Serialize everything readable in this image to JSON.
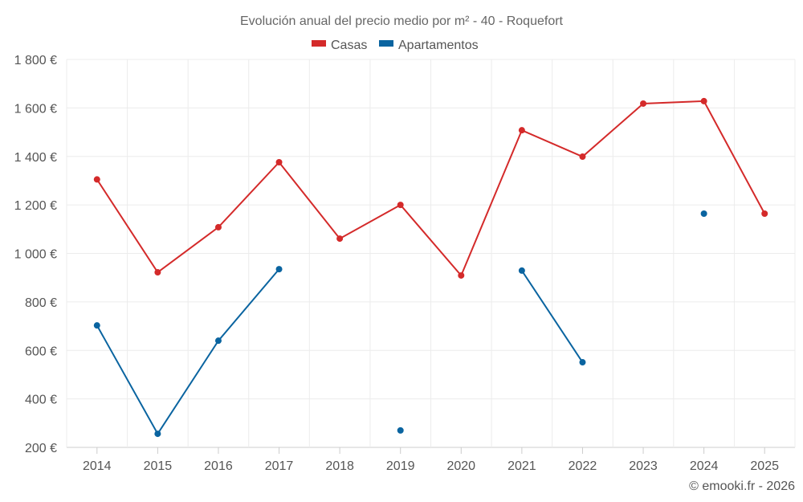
{
  "chart_data": {
    "type": "line",
    "title": "Evolución anual del precio medio por m² - 40 - Roquefort",
    "xlabel": "",
    "ylabel": "",
    "categories": [
      "2014",
      "2015",
      "2016",
      "2017",
      "2018",
      "2019",
      "2020",
      "2021",
      "2022",
      "2023",
      "2024",
      "2025"
    ],
    "ylim": [
      200,
      1800
    ],
    "yticks": [
      200,
      400,
      600,
      800,
      1000,
      1200,
      1400,
      1600,
      1800
    ],
    "ytick_labels": [
      "200 €",
      "400 €",
      "600 €",
      "800 €",
      "1 000 €",
      "1 200 €",
      "1 400 €",
      "1 600 €",
      "1 800 €"
    ],
    "grid": true,
    "legend_position": "top-center",
    "series": [
      {
        "name": "Casas",
        "color": "#d42a2a",
        "values": [
          1305,
          922,
          1108,
          1376,
          1061,
          1200,
          909,
          1508,
          1399,
          1618,
          1628,
          1164
        ]
      },
      {
        "name": "Apartamentos",
        "color": "#0a64a0",
        "values": [
          703,
          256,
          640,
          935,
          null,
          270,
          null,
          929,
          551,
          null,
          1164,
          null
        ]
      }
    ]
  },
  "credit": "© emooki.fr - 2026"
}
